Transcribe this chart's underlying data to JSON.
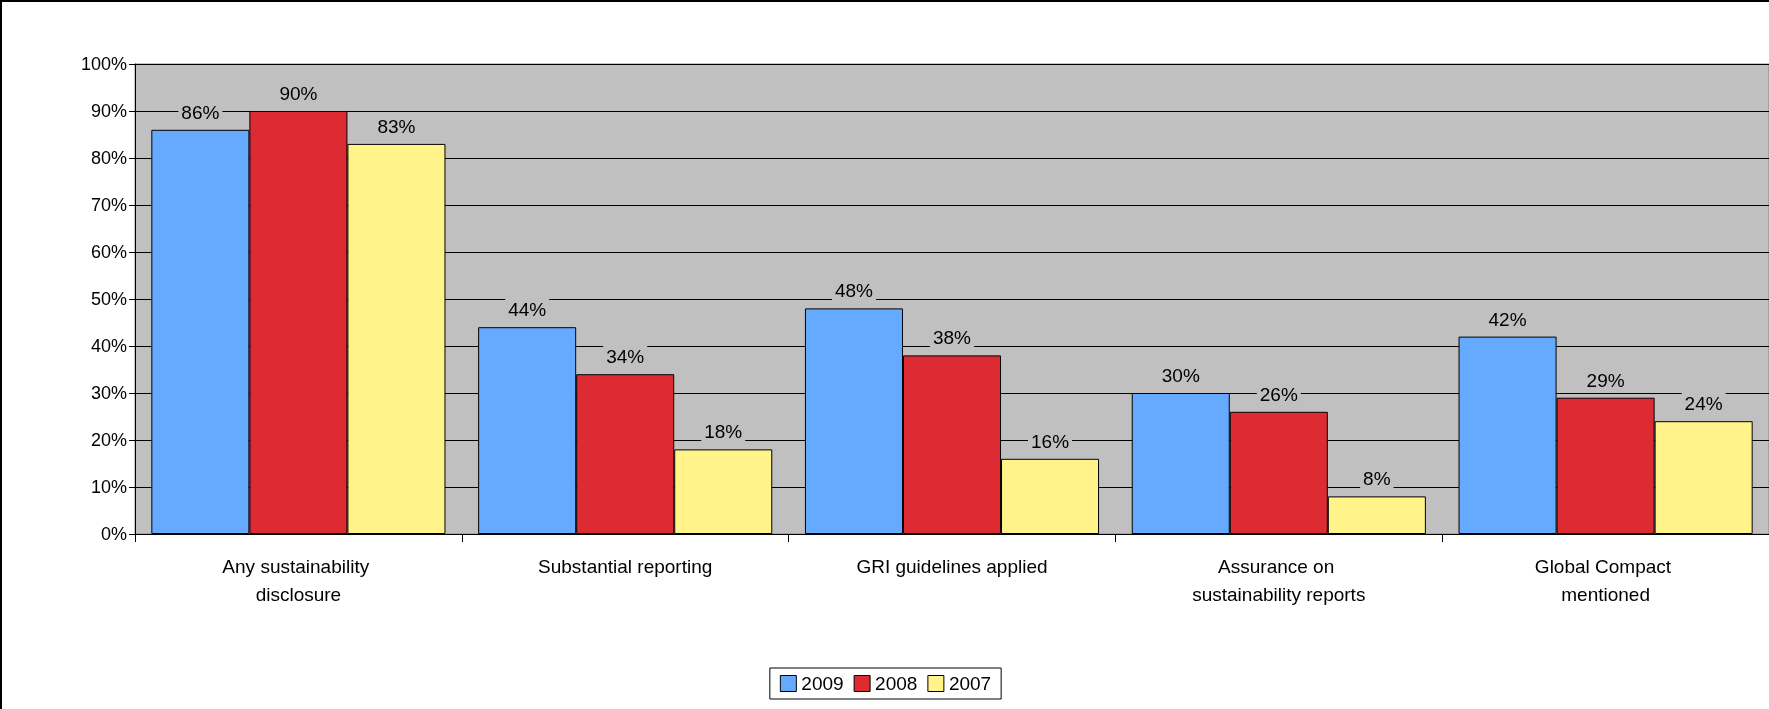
{
  "chart_data": {
    "type": "bar",
    "categories": [
      "Any sustainability disclosure",
      "Substantial reporting",
      "GRI guidelines applied",
      "Assurance on sustainability reports",
      "Global Compact mentioned"
    ],
    "series": [
      {
        "name": "2009",
        "color": "#66aaff",
        "values": [
          86,
          44,
          48,
          30,
          42
        ],
        "value_labels": [
          "86%",
          "44%",
          "48%",
          "30%",
          "42%"
        ]
      },
      {
        "name": "2008",
        "color": "#dd2a33",
        "values": [
          90,
          34,
          38,
          26,
          29
        ],
        "value_labels": [
          "90%",
          "34%",
          "38%",
          "26%",
          "29%"
        ]
      },
      {
        "name": "2007",
        "color": "#fff38a",
        "values": [
          83,
          18,
          16,
          8,
          24
        ],
        "value_labels": [
          "83%",
          "18%",
          "16%",
          "8%",
          "24%"
        ]
      }
    ],
    "ylim": [
      0,
      100
    ],
    "yticks": [
      {
        "value": 0,
        "label": "0%"
      },
      {
        "value": 10,
        "label": "10%"
      },
      {
        "value": 20,
        "label": "20%"
      },
      {
        "value": 30,
        "label": "30%"
      },
      {
        "value": 40,
        "label": "40%"
      },
      {
        "value": 50,
        "label": "50%"
      },
      {
        "value": 60,
        "label": "60%"
      },
      {
        "value": 70,
        "label": "70%"
      },
      {
        "value": 80,
        "label": "80%"
      },
      {
        "value": 90,
        "label": "90%"
      },
      {
        "value": 100,
        "label": "100%"
      }
    ],
    "grid": "y",
    "legend": "bottom"
  }
}
